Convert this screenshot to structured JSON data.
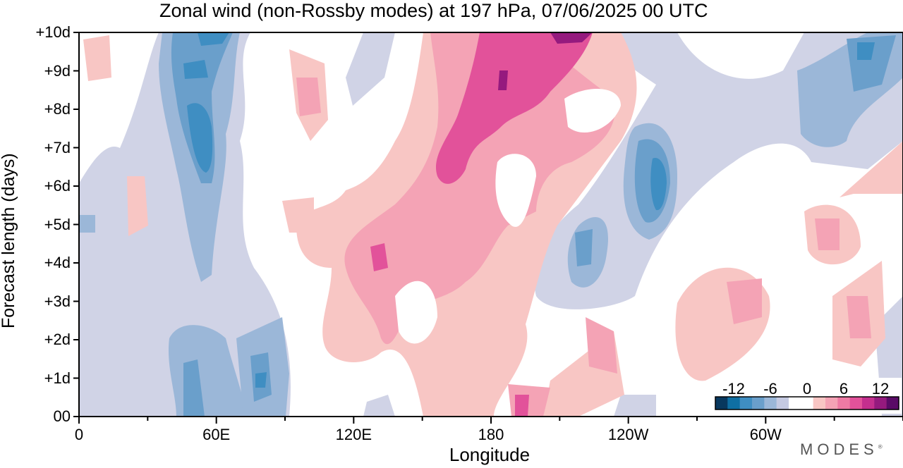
{
  "title": "Zonal wind (non-Rossby modes) at 197 hPa,  07/06/2025  00 UTC",
  "brand": "MODES",
  "brand_mark": "®",
  "chart_data": {
    "type": "heatmap",
    "title": "Zonal wind (non-Rossby modes) at 197 hPa,  07/06/2025  00 UTC",
    "xlabel": "Longitude",
    "ylabel": "Forecast length (days)",
    "x_ticks": [
      "0",
      "60E",
      "120E",
      "180",
      "120W",
      "60W"
    ],
    "x_tick_values": [
      0,
      60,
      120,
      180,
      240,
      300
    ],
    "xlim": [
      0,
      360
    ],
    "y_ticks": [
      "00",
      "+1d",
      "+2d",
      "+3d",
      "+4d",
      "+5d",
      "+6d",
      "+7d",
      "+8d",
      "+9d",
      "+10d"
    ],
    "y_tick_values": [
      0,
      1,
      2,
      3,
      4,
      5,
      6,
      7,
      8,
      9,
      10
    ],
    "ylim": [
      0,
      10
    ],
    "colorbar": {
      "labels": [
        "-12",
        "-6",
        "0",
        "6",
        "12"
      ],
      "levels": [
        -14,
        -12,
        -10,
        -8,
        -6,
        -4,
        -2,
        0,
        2,
        4,
        6,
        8,
        10,
        12,
        14
      ],
      "colors": [
        "#08385e",
        "#0f6fa3",
        "#3f8ec2",
        "#6a9fcb",
        "#9bb7d8",
        "#c5cae2",
        "#ffffff",
        "#ffffff",
        "#f8c6c4",
        "#f4a3b5",
        "#ee7aa4",
        "#e2529a",
        "#c42f8e",
        "#951a7e",
        "#5a0b67"
      ]
    },
    "features": [
      {
        "kind": "easterly",
        "lon": 55,
        "day_start": 0,
        "day_end": 10,
        "peak": -11
      },
      {
        "kind": "westerly",
        "lon": 175,
        "day_start": 0,
        "day_end": 10,
        "peak": 12
      },
      {
        "kind": "easterly",
        "lon": 250,
        "day_start": 3,
        "day_end": 8,
        "peak": -11
      },
      {
        "kind": "easterly",
        "lon": 350,
        "day_start": 7,
        "day_end": 10,
        "peak": -9
      },
      {
        "kind": "westerly",
        "lon": 320,
        "day_start": 2,
        "day_end": 5,
        "peak": 7
      }
    ]
  }
}
